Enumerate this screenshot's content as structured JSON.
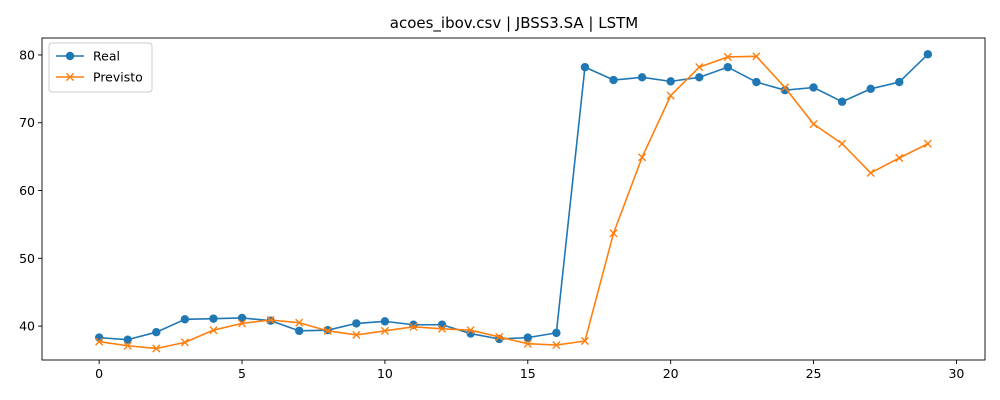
{
  "chart_data": {
    "type": "line",
    "title": "acoes_ibov.csv | JBSS3.SA | LSTM",
    "xlabel": "",
    "ylabel": "",
    "xlim": [
      -2,
      31
    ],
    "ylim": [
      35,
      82.5
    ],
    "xticks": [
      0,
      5,
      10,
      15,
      20,
      25,
      30
    ],
    "yticks": [
      40,
      50,
      60,
      70,
      80
    ],
    "grid": false,
    "legend_position": "top-left",
    "x": [
      0,
      1,
      2,
      3,
      4,
      5,
      6,
      7,
      8,
      9,
      10,
      11,
      12,
      13,
      14,
      15,
      16,
      17,
      18,
      19,
      20,
      21,
      22,
      23,
      24,
      25,
      26,
      27,
      28,
      29
    ],
    "series": [
      {
        "name": "Real",
        "color": "#1f77b4",
        "marker": "circle",
        "values": [
          38.3,
          38.0,
          39.1,
          41.0,
          41.1,
          41.2,
          40.8,
          39.3,
          39.4,
          40.4,
          40.7,
          40.2,
          40.2,
          38.9,
          38.1,
          38.3,
          39.0,
          78.2,
          76.3,
          76.7,
          76.1,
          76.7,
          78.2,
          76.0,
          74.8,
          75.2,
          73.1,
          75.0,
          76.0,
          80.1
        ]
      },
      {
        "name": "Previsto",
        "color": "#ff7f0e",
        "marker": "x",
        "values": [
          37.7,
          37.1,
          36.7,
          37.6,
          39.4,
          40.4,
          40.9,
          40.5,
          39.3,
          38.7,
          39.3,
          39.9,
          39.6,
          39.4,
          38.4,
          37.4,
          37.2,
          37.8,
          53.7,
          64.9,
          74.0,
          78.2,
          79.7,
          79.8,
          75.2,
          69.8,
          66.9,
          62.6,
          64.8,
          66.9
        ]
      }
    ]
  }
}
